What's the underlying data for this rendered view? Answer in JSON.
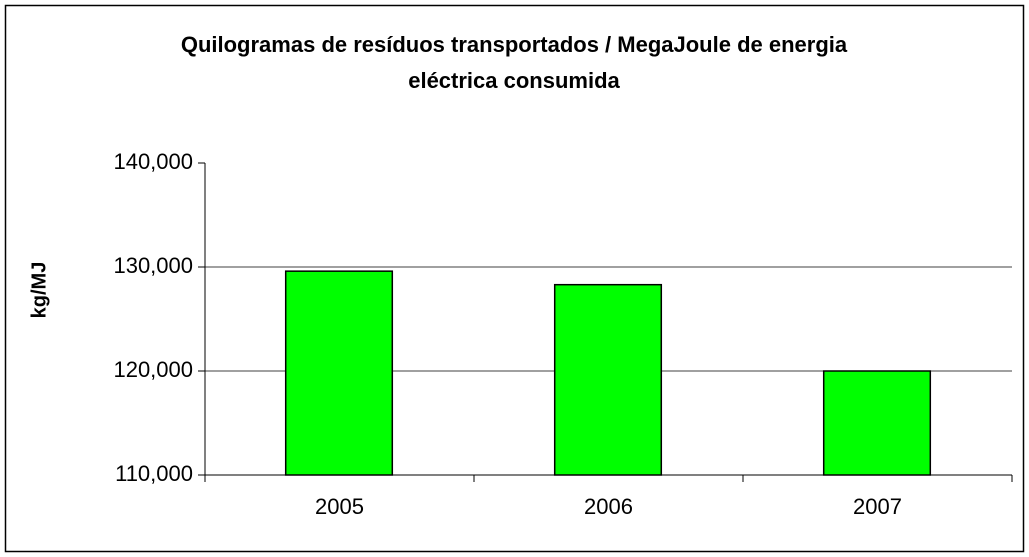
{
  "chart_data": {
    "type": "bar",
    "title": "Quilogramas de resíduos transportados / MegaJoule de energia eléctrica consumida",
    "y_label": "kg/MJ",
    "categories": [
      "2005",
      "2006",
      "2007"
    ],
    "values": [
      129.6,
      128.3,
      120.0
    ],
    "color": "#00ff00",
    "ylim": [
      110,
      140
    ],
    "yticks": [
      {
        "value": 110,
        "label": "110,000"
      },
      {
        "value": 120,
        "label": "120,000"
      },
      {
        "value": 130,
        "label": "130,000"
      },
      {
        "value": 140,
        "label": "140,000"
      }
    ],
    "grid": true
  }
}
